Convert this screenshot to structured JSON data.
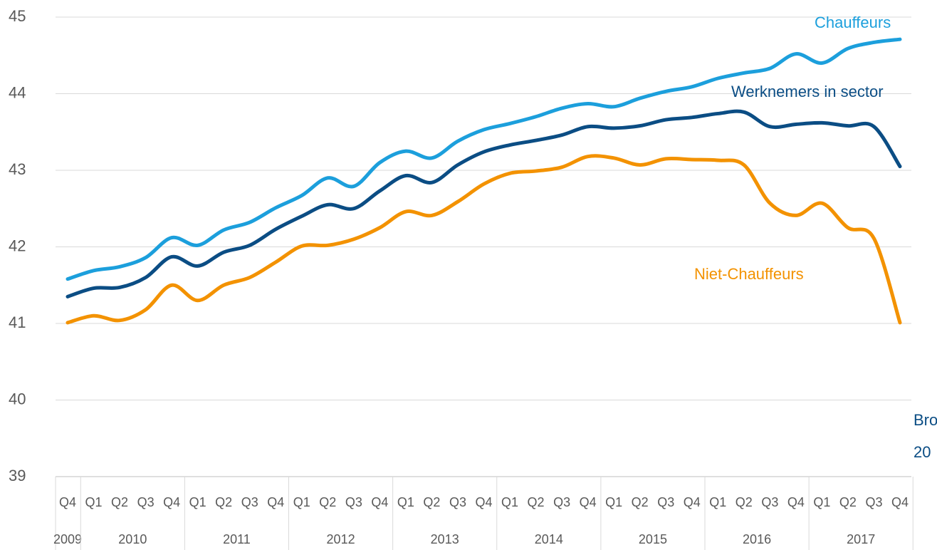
{
  "chart_data": {
    "type": "line",
    "categories": [
      {
        "quarter": "Q4",
        "year": "2009"
      },
      {
        "quarter": "Q1",
        "year": "2010"
      },
      {
        "quarter": "Q2",
        "year": "2010"
      },
      {
        "quarter": "Q3",
        "year": "2010"
      },
      {
        "quarter": "Q4",
        "year": "2010"
      },
      {
        "quarter": "Q1",
        "year": "2011"
      },
      {
        "quarter": "Q2",
        "year": "2011"
      },
      {
        "quarter": "Q3",
        "year": "2011"
      },
      {
        "quarter": "Q4",
        "year": "2011"
      },
      {
        "quarter": "Q1",
        "year": "2012"
      },
      {
        "quarter": "Q2",
        "year": "2012"
      },
      {
        "quarter": "Q3",
        "year": "2012"
      },
      {
        "quarter": "Q4",
        "year": "2012"
      },
      {
        "quarter": "Q1",
        "year": "2013"
      },
      {
        "quarter": "Q2",
        "year": "2013"
      },
      {
        "quarter": "Q3",
        "year": "2013"
      },
      {
        "quarter": "Q4",
        "year": "2013"
      },
      {
        "quarter": "Q1",
        "year": "2014"
      },
      {
        "quarter": "Q2",
        "year": "2014"
      },
      {
        "quarter": "Q3",
        "year": "2014"
      },
      {
        "quarter": "Q4",
        "year": "2014"
      },
      {
        "quarter": "Q1",
        "year": "2015"
      },
      {
        "quarter": "Q2",
        "year": "2015"
      },
      {
        "quarter": "Q3",
        "year": "2015"
      },
      {
        "quarter": "Q4",
        "year": "2015"
      },
      {
        "quarter": "Q1",
        "year": "2016"
      },
      {
        "quarter": "Q2",
        "year": "2016"
      },
      {
        "quarter": "Q3",
        "year": "2016"
      },
      {
        "quarter": "Q4",
        "year": "2016"
      },
      {
        "quarter": "Q1",
        "year": "2017"
      },
      {
        "quarter": "Q2",
        "year": "2017"
      },
      {
        "quarter": "Q3",
        "year": "2017"
      },
      {
        "quarter": "Q4",
        "year": "2017"
      }
    ],
    "series": [
      {
        "name": "Chauffeurs",
        "color": "#1c9fdc",
        "values": [
          41.58,
          41.69,
          41.74,
          41.86,
          42.12,
          42.02,
          42.22,
          42.32,
          42.51,
          42.67,
          42.9,
          42.79,
          43.1,
          43.25,
          43.16,
          43.38,
          43.53,
          43.61,
          43.7,
          43.81,
          43.87,
          43.83,
          43.94,
          44.03,
          44.09,
          44.2,
          44.27,
          44.33,
          44.52,
          44.4,
          44.59,
          44.67,
          44.71
        ]
      },
      {
        "name": "Werknemers in sector",
        "color": "#0b4d84",
        "values": [
          41.35,
          41.46,
          41.47,
          41.6,
          41.87,
          41.75,
          41.93,
          42.02,
          42.23,
          42.4,
          42.55,
          42.5,
          42.73,
          42.93,
          42.84,
          43.07,
          43.24,
          43.33,
          43.39,
          43.46,
          43.57,
          43.55,
          43.58,
          43.66,
          43.69,
          43.74,
          43.76,
          43.57,
          43.6,
          43.62,
          43.58,
          43.57,
          43.05
        ]
      },
      {
        "name": "Niet-Chauffeurs",
        "color": "#f39200",
        "values": [
          41.01,
          41.1,
          41.04,
          41.18,
          41.5,
          41.3,
          41.5,
          41.6,
          41.8,
          42.01,
          42.02,
          42.1,
          42.25,
          42.46,
          42.41,
          42.59,
          42.82,
          42.96,
          42.99,
          43.04,
          43.18,
          43.16,
          43.07,
          43.15,
          43.14,
          43.13,
          43.07,
          42.57,
          42.41,
          42.57,
          42.25,
          42.11,
          41.01
        ]
      }
    ],
    "annotations": [
      "Bro",
      "20"
    ],
    "annotation_color": "#0b4d84",
    "ylim": [
      39,
      45
    ],
    "yticks": [
      39,
      40,
      41,
      42,
      43,
      44,
      45
    ],
    "grid": true
  }
}
